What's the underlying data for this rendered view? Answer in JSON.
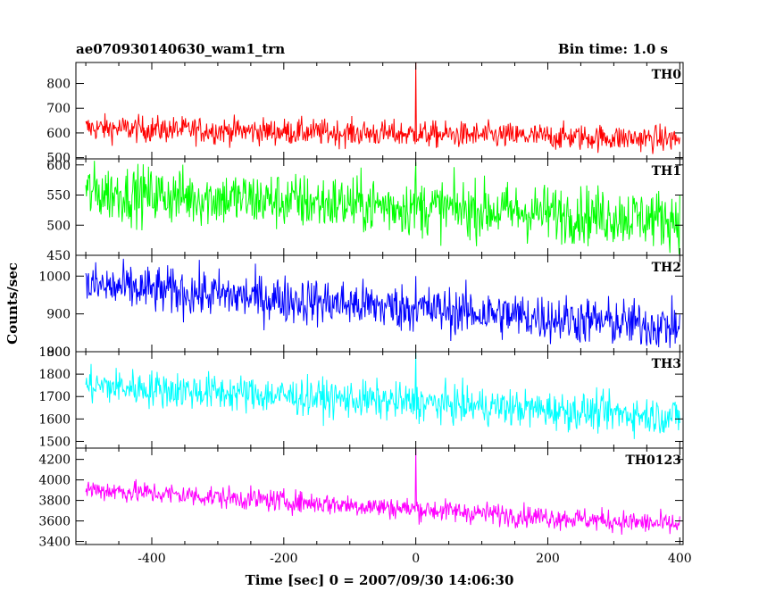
{
  "chart_data": {
    "type": "line",
    "title": "ae070930140630_wam1_trn",
    "bin_time_label": "Bin time: 1.0 s",
    "xlabel": "Time [sec] 0 = 2007/09/30 14:06:30",
    "ylabel": "Counts/sec",
    "xlim": [
      -515,
      405
    ],
    "x_ticks": [
      -400,
      -200,
      0,
      200,
      400
    ],
    "grid": false,
    "series_generation": {
      "x_start": -500,
      "x_end": 400,
      "bin_sec": 1.0
    },
    "panels": [
      {
        "name": "TH0",
        "color": "#ff0000",
        "ylim": [
          495,
          885
        ],
        "y_ticks": [
          500,
          600,
          700,
          800
        ],
        "trend": {
          "start": 620,
          "end": 575
        },
        "noise": 27,
        "spike": {
          "x": 0,
          "value": 885
        }
      },
      {
        "name": "TH1",
        "color": "#00ff00",
        "ylim": [
          450,
          610
        ],
        "y_ticks": [
          450,
          500,
          550,
          600
        ],
        "trend": {
          "start": 555,
          "end": 510
        },
        "noise": 24,
        "spike": {
          "x": 0,
          "value": 605
        }
      },
      {
        "name": "TH2",
        "color": "#0000ff",
        "ylim": [
          800,
          1055
        ],
        "y_ticks": [
          800,
          900,
          1000
        ],
        "trend": {
          "start": 975,
          "end": 865
        },
        "noise": 32,
        "spike": {
          "x": 0,
          "value": 1000
        }
      },
      {
        "name": "TH3",
        "color": "#00ffff",
        "ylim": [
          1470,
          1900
        ],
        "y_ticks": [
          1500,
          1600,
          1700,
          1800,
          1900
        ],
        "trend": {
          "start": 1750,
          "end": 1610
        },
        "noise": 42,
        "spike": {
          "x": 0,
          "value": 1895
        }
      },
      {
        "name": "TH0123",
        "color": "#ff00ff",
        "ylim": [
          3370,
          4310
        ],
        "y_ticks": [
          3400,
          3600,
          3800,
          4000,
          4200
        ],
        "trend": {
          "start": 3910,
          "end": 3560
        },
        "noise": 55,
        "spike": {
          "x": 0,
          "value": 4310
        }
      }
    ]
  }
}
